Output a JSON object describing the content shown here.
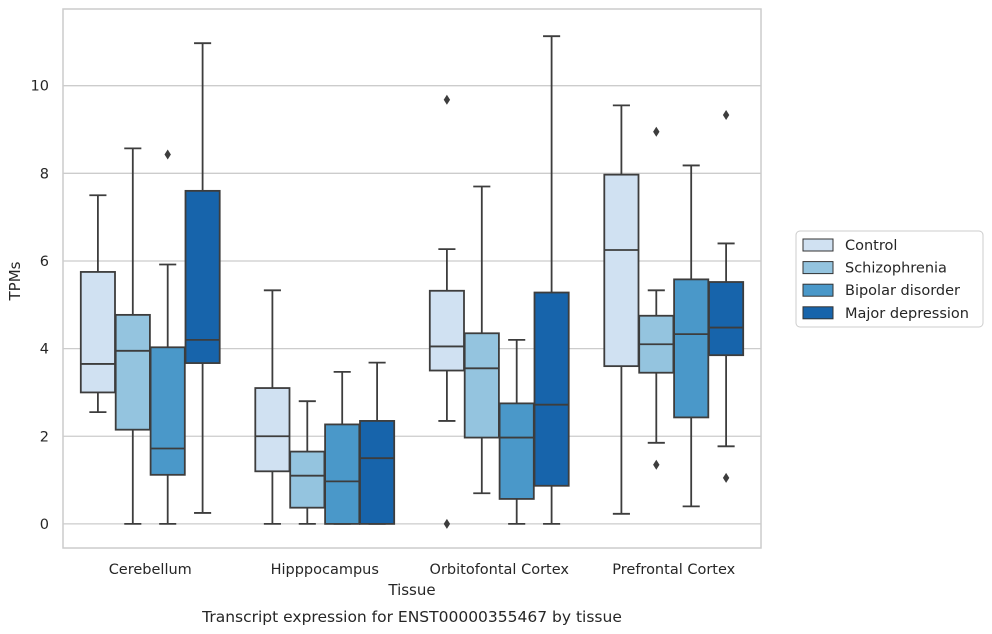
{
  "chart_data": {
    "type": "boxplot",
    "title": "Transcript expression for ENST00000355467 by tissue",
    "xlabel": "Tissue",
    "ylabel": "TPMs",
    "ylim": [
      -0.55,
      11.75
    ],
    "yticks": [
      0,
      2,
      4,
      6,
      8,
      10
    ],
    "grid": true,
    "legend_position": "right",
    "categories": [
      "Cerebellum",
      "Hipppocampus",
      "Orbitofontal Cortex",
      "Prefrontal Cortex"
    ],
    "series": [
      {
        "name": "Control",
        "color": "#d0e1f2",
        "boxes": [
          {
            "whisker_low": 2.55,
            "q1": 3.0,
            "median": 3.65,
            "q3": 5.75,
            "whisker_high": 7.5,
            "outliers": []
          },
          {
            "whisker_low": 0.0,
            "q1": 1.2,
            "median": 2.0,
            "q3": 3.1,
            "whisker_high": 5.33,
            "outliers": []
          },
          {
            "whisker_low": 2.35,
            "q1": 3.5,
            "median": 4.05,
            "q3": 5.32,
            "whisker_high": 6.27,
            "outliers": [
              0.0,
              9.68
            ]
          },
          {
            "whisker_low": 0.23,
            "q1": 3.6,
            "median": 6.25,
            "q3": 7.97,
            "whisker_high": 9.55,
            "outliers": []
          }
        ]
      },
      {
        "name": "Schizophrenia",
        "color": "#94c4df",
        "boxes": [
          {
            "whisker_low": 0.0,
            "q1": 2.15,
            "median": 3.95,
            "q3": 4.77,
            "whisker_high": 8.57,
            "outliers": []
          },
          {
            "whisker_low": 0.0,
            "q1": 0.37,
            "median": 1.1,
            "q3": 1.65,
            "whisker_high": 2.8,
            "outliers": []
          },
          {
            "whisker_low": 0.7,
            "q1": 1.97,
            "median": 3.55,
            "q3": 4.35,
            "whisker_high": 7.7,
            "outliers": []
          },
          {
            "whisker_low": 1.85,
            "q1": 3.45,
            "median": 4.1,
            "q3": 4.75,
            "whisker_high": 5.33,
            "outliers": [
              1.35,
              8.95
            ]
          }
        ]
      },
      {
        "name": "Bipolar disorder",
        "color": "#4a98c9",
        "boxes": [
          {
            "whisker_low": 0.0,
            "q1": 1.12,
            "median": 1.72,
            "q3": 4.03,
            "whisker_high": 5.92,
            "outliers": [
              8.43
            ]
          },
          {
            "whisker_low": 0.0,
            "q1": 0.0,
            "median": 0.97,
            "q3": 2.27,
            "whisker_high": 3.47,
            "outliers": []
          },
          {
            "whisker_low": 0.0,
            "q1": 0.57,
            "median": 1.97,
            "q3": 2.75,
            "whisker_high": 4.2,
            "outliers": []
          },
          {
            "whisker_low": 0.4,
            "q1": 2.43,
            "median": 4.33,
            "q3": 5.58,
            "whisker_high": 8.18,
            "outliers": []
          }
        ]
      },
      {
        "name": "Major depression",
        "color": "#1764ab",
        "boxes": [
          {
            "whisker_low": 0.25,
            "q1": 3.67,
            "median": 4.2,
            "q3": 7.6,
            "whisker_high": 10.97,
            "outliers": []
          },
          {
            "whisker_low": 0.0,
            "q1": 0.0,
            "median": 1.5,
            "q3": 2.35,
            "whisker_high": 3.68,
            "outliers": []
          },
          {
            "whisker_low": 0.0,
            "q1": 0.87,
            "median": 2.72,
            "q3": 5.28,
            "whisker_high": 11.13,
            "outliers": []
          },
          {
            "whisker_low": 1.77,
            "q1": 3.85,
            "median": 4.48,
            "q3": 5.52,
            "whisker_high": 6.4,
            "outliers": [
              1.05,
              9.33
            ]
          }
        ]
      }
    ]
  }
}
